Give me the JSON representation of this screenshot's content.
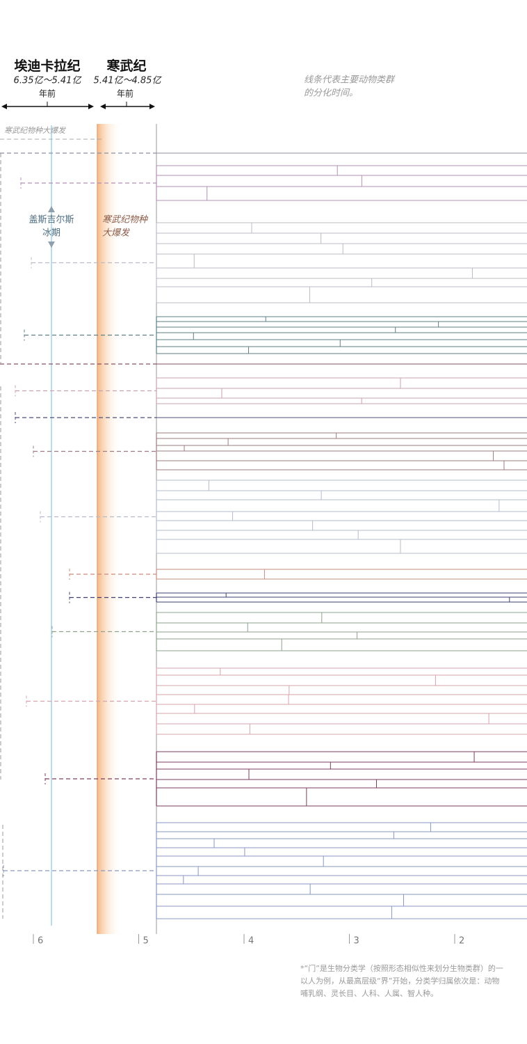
{
  "periods": [
    {
      "name": "埃迪卡拉纪",
      "range": "6.35亿～5.41亿",
      "unit": "年前"
    },
    {
      "name": "寒武纪",
      "range": "5.41亿～4.85亿",
      "unit": "年前"
    }
  ],
  "note": [
    "线条代表主要动物类群",
    "的分化时间。"
  ],
  "labels": {
    "cambrian_top": "寒武纪物种大爆发",
    "glaciation": [
      "盖斯吉尔斯",
      "冰期"
    ],
    "explosion": [
      "寒武纪物种",
      "大爆发"
    ]
  },
  "axis_ticks": [
    6,
    5,
    4,
    3,
    2
  ],
  "footnote": [
    "*“门”是生物分类学（按照形态相似性来划分生物类群）的一",
    "以人为例，从最高层级“界”开始，分类学归属依次是：动物",
    "哺乳纲、灵长目、人科、人属、智人种。"
  ]
}
